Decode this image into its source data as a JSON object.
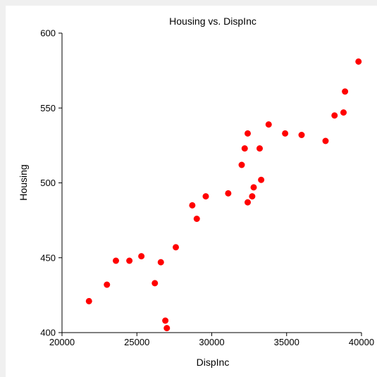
{
  "chart_data": {
    "type": "scatter",
    "title": "Housing vs. DispInc",
    "xlabel": "DispInc",
    "ylabel": "Housing",
    "xlim": [
      20000,
      40000
    ],
    "ylim": [
      400,
      600
    ],
    "xticks": [
      20000,
      25000,
      30000,
      35000,
      40000
    ],
    "yticks": [
      400,
      450,
      500,
      550,
      600
    ],
    "xtick_labels": [
      "20000",
      "25000",
      "30000",
      "35000",
      "40000"
    ],
    "ytick_labels": [
      "400",
      "450",
      "500",
      "550",
      "600"
    ],
    "grid": false,
    "marker_color": "#ff0000",
    "points": [
      {
        "x": 21800,
        "y": 421
      },
      {
        "x": 23000,
        "y": 432
      },
      {
        "x": 23600,
        "y": 448
      },
      {
        "x": 24500,
        "y": 448
      },
      {
        "x": 25300,
        "y": 451
      },
      {
        "x": 26200,
        "y": 433
      },
      {
        "x": 26600,
        "y": 447
      },
      {
        "x": 26900,
        "y": 408
      },
      {
        "x": 27000,
        "y": 403
      },
      {
        "x": 27600,
        "y": 457
      },
      {
        "x": 28700,
        "y": 485
      },
      {
        "x": 29000,
        "y": 476
      },
      {
        "x": 29600,
        "y": 491
      },
      {
        "x": 31100,
        "y": 493
      },
      {
        "x": 32000,
        "y": 512
      },
      {
        "x": 32200,
        "y": 523
      },
      {
        "x": 32400,
        "y": 533
      },
      {
        "x": 32400,
        "y": 487
      },
      {
        "x": 32700,
        "y": 491
      },
      {
        "x": 32800,
        "y": 497
      },
      {
        "x": 33200,
        "y": 523
      },
      {
        "x": 33300,
        "y": 502
      },
      {
        "x": 33800,
        "y": 539
      },
      {
        "x": 34900,
        "y": 533
      },
      {
        "x": 36000,
        "y": 532
      },
      {
        "x": 37600,
        "y": 528
      },
      {
        "x": 38200,
        "y": 545
      },
      {
        "x": 38800,
        "y": 547
      },
      {
        "x": 38900,
        "y": 561
      },
      {
        "x": 39800,
        "y": 581
      }
    ]
  }
}
